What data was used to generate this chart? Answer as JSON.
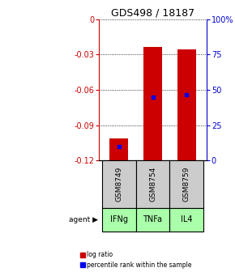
{
  "title": "GDS498 / 18187",
  "samples": [
    "GSM8749",
    "GSM8754",
    "GSM8759"
  ],
  "agents": [
    "IFNg",
    "TNFa",
    "IL4"
  ],
  "bar_tops": [
    -0.101,
    -0.024,
    -0.026
  ],
  "bar_bottom": -0.12,
  "percentile_values": [
    -0.108,
    -0.066,
    -0.064
  ],
  "ylim_left": [
    -0.12,
    0.0
  ],
  "left_ticks": [
    0,
    -0.03,
    -0.06,
    -0.09,
    -0.12
  ],
  "right_ticks": [
    0,
    25,
    50,
    75,
    100
  ],
  "right_tick_labels": [
    "0",
    "25",
    "50",
    "75",
    "100%"
  ],
  "bar_color": "#cc0000",
  "dot_color": "#0000ee",
  "agent_bg_color": "#aaffaa",
  "sample_bg_color": "#cccccc",
  "left_axis_color": "#cc0000",
  "right_axis_color": "#0000cc",
  "bar_width": 0.55,
  "legend_items": [
    "log ratio",
    "percentile rank within the sample"
  ]
}
